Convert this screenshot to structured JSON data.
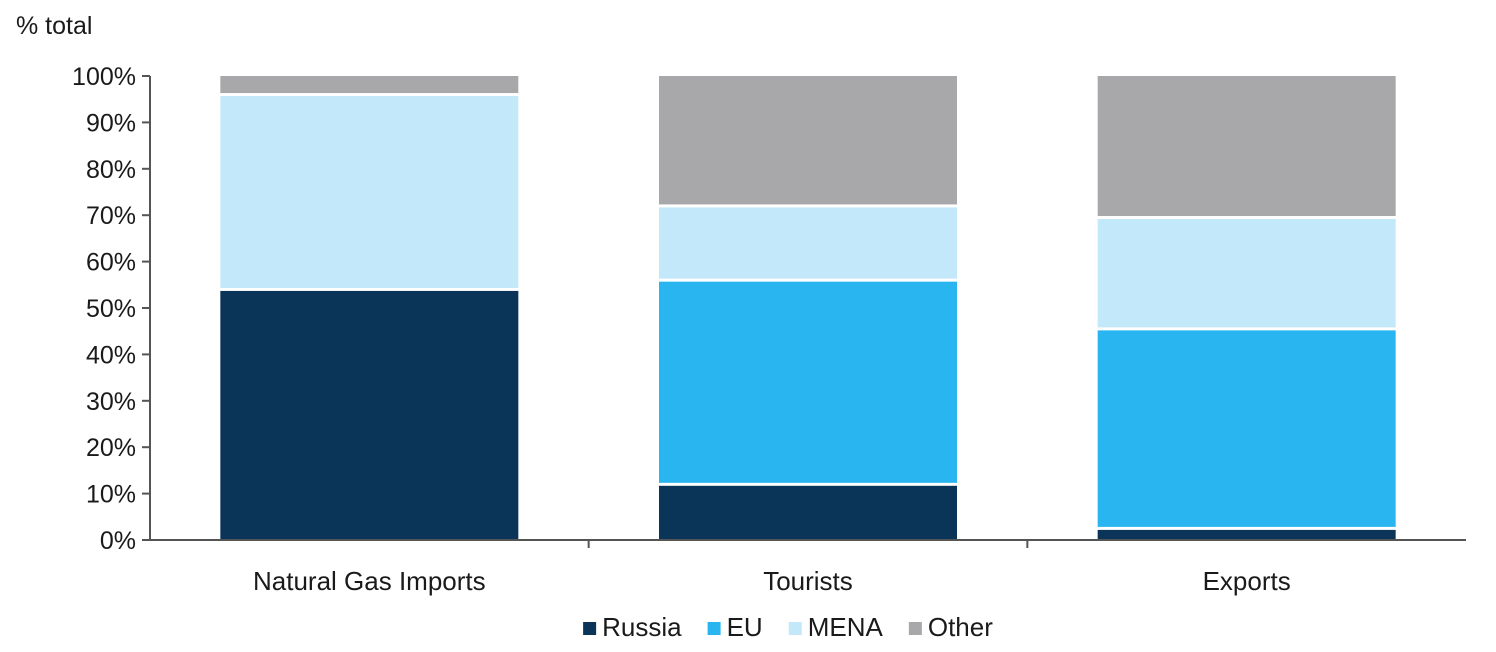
{
  "chart_data": {
    "type": "bar",
    "stacked": true,
    "y_unit_label": "% total",
    "categories": [
      "Natural Gas Imports",
      "Tourists",
      "Exports"
    ],
    "series": [
      {
        "name": "Russia",
        "color": "#0b3558",
        "values": [
          54,
          12,
          2.5
        ]
      },
      {
        "name": "EU",
        "color": "#29b5ef",
        "values": [
          0,
          44,
          43
        ]
      },
      {
        "name": "MENA",
        "color": "#c3e8f9",
        "values": [
          42,
          16,
          24
        ]
      },
      {
        "name": "Other",
        "color": "#a8a8aa",
        "values": [
          4,
          28,
          30.5
        ]
      }
    ],
    "ylim": [
      0,
      100
    ],
    "yticks": [
      0,
      10,
      20,
      30,
      40,
      50,
      60,
      70,
      80,
      90,
      100
    ],
    "ytick_labels": [
      "0%",
      "10%",
      "20%",
      "30%",
      "40%",
      "50%",
      "60%",
      "70%",
      "80%",
      "90%",
      "100%"
    ],
    "grid": false,
    "legend_position": "bottom-center"
  }
}
